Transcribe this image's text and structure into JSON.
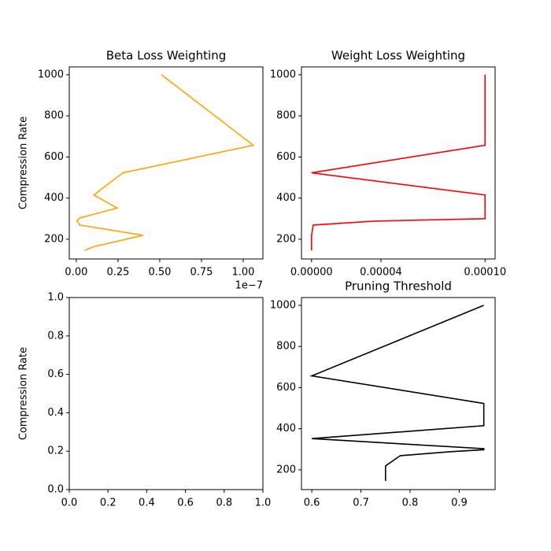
{
  "chart_data": [
    {
      "type": "line",
      "title": "Beta Loss Weighting",
      "y_label": "Compression Rate",
      "x_offset_label": "1e−7",
      "xlim": [
        -0.042,
        1.118
      ],
      "ylim": [
        104,
        1038
      ],
      "xticks": [
        {
          "value": 0,
          "label": "0.00"
        },
        0.25,
        {
          "value": 0.5,
          "label": "0.50"
        },
        0.75,
        {
          "value": 1,
          "label": "1.00"
        }
      ],
      "yticks": [
        200,
        400,
        600,
        800,
        1000
      ],
      "series": [
        {
          "color": "#ffa500",
          "x": [
            0.51,
            1.06,
            0.28,
            0.105,
            0.245,
            0.02,
            0.005,
            0.02,
            0.4,
            0.11,
            0.05
          ],
          "values": [
            1000,
            657,
            523,
            415,
            352,
            303,
            290,
            269,
            219,
            165,
            146
          ]
        }
      ]
    },
    {
      "type": "line",
      "title": "Weight Loss Weighting",
      "xlim": [
        -5.8e-06,
        0.0001058
      ],
      "ylim": [
        104,
        1038
      ],
      "xticks": [
        {
          "value": 0,
          "label": "0.00000"
        },
        {
          "value": 4e-05,
          "label": "0.00004"
        },
        {
          "value": 0.0001,
          "label": "0.00010"
        }
      ],
      "yticks": [
        200,
        400,
        600,
        800,
        1000
      ],
      "series": [
        {
          "color": "#ff0000",
          "x": [
            0.0001,
            0.0001,
            0,
            0.0001,
            0.0001,
            3.6e-05,
            1e-06,
            0,
            0
          ],
          "values": [
            1000,
            657,
            523,
            415,
            300,
            288,
            269,
            219,
            146
          ]
        }
      ]
    },
    {
      "type": "line",
      "y_label": "Compression Rate",
      "xlim": [
        0,
        1
      ],
      "ylim": [
        0,
        1
      ],
      "xticks": [
        {
          "value": 0,
          "label": "0.0"
        },
        0.2,
        0.4,
        0.6,
        0.8,
        {
          "value": 1,
          "label": "1.0"
        }
      ],
      "yticks": [
        {
          "value": 0,
          "label": "0.0"
        },
        0.2,
        0.4,
        0.6,
        0.8,
        {
          "value": 1,
          "label": "1.0"
        }
      ]
    },
    {
      "type": "line",
      "title": "Pruning Threshold",
      "xlim": [
        0.579,
        0.973
      ],
      "ylim": [
        104,
        1038
      ],
      "xticks": [
        0.6,
        0.7,
        0.8,
        0.9
      ],
      "yticks": [
        200,
        400,
        600,
        800,
        1000
      ],
      "series": [
        {
          "color": "#000000",
          "x": [
            0.95,
            0.6,
            0.95,
            0.95,
            0.6,
            0.95,
            0.95,
            0.88,
            0.78,
            0.75,
            0.75
          ],
          "values": [
            1000,
            657,
            523,
            415,
            352,
            303,
            298,
            288,
            269,
            219,
            146
          ]
        }
      ]
    }
  ]
}
